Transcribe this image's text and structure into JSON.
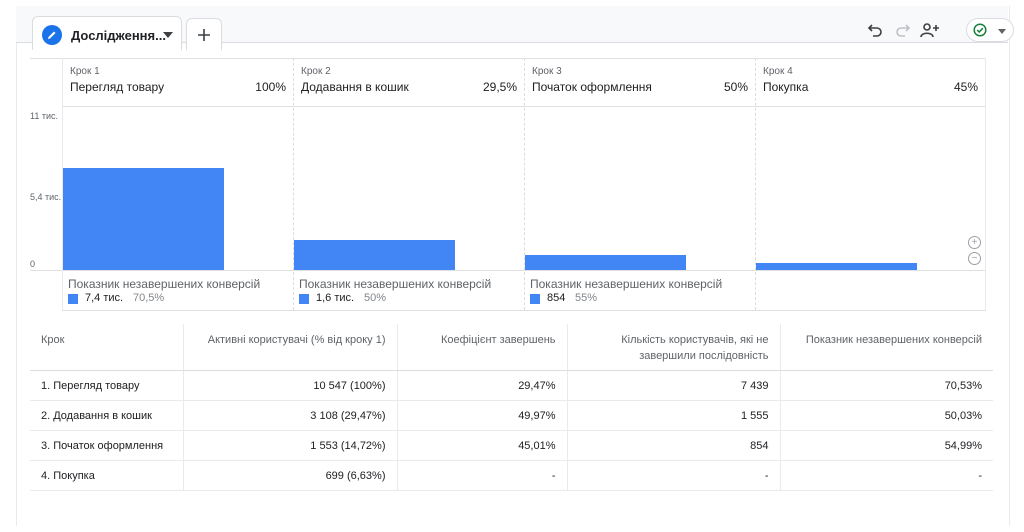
{
  "tab": {
    "title": "Дослідження..."
  },
  "steps": [
    {
      "num": "Крок 1",
      "name": "Перегляд товару",
      "pct": "100%"
    },
    {
      "num": "Крок 2",
      "name": "Додавання в кошик",
      "pct": "29,5%"
    },
    {
      "num": "Крок 3",
      "name": "Початок оформлення",
      "pct": "50%"
    },
    {
      "num": "Крок 4",
      "name": "Покупка",
      "pct": "45%"
    }
  ],
  "chart_data": {
    "type": "bar",
    "categories": [
      "Крок 1",
      "Крок 2",
      "Крок 3",
      "Крок 4"
    ],
    "values": [
      10547,
      3108,
      1553,
      699
    ],
    "yticks": [
      "11 тис.",
      "5,4 тис.",
      "0"
    ],
    "ylim": [
      0,
      10800
    ]
  },
  "abandon": {
    "label": "Показник незавершених конверсій",
    "items": [
      {
        "value": "7,4 тис.",
        "pct": "70,5%"
      },
      {
        "value": "1,6 тис.",
        "pct": "50%"
      },
      {
        "value": "854",
        "pct": "55%"
      }
    ]
  },
  "table": {
    "headers": [
      "Крок",
      "Активні користувачі (% від кроку 1)",
      "Коефіцієнт завершень",
      "Кількість користувачів, які не завершили послідовність",
      "Показник незавершених конверсій"
    ],
    "rows": [
      [
        "1. Перегляд товару",
        "10 547 (100%)",
        "29,47%",
        "7 439",
        "70,53%"
      ],
      [
        "2. Додавання в кошик",
        "3 108 (29,47%)",
        "49,97%",
        "1 555",
        "50,03%"
      ],
      [
        "3. Початок оформлення",
        "1 553 (14,72%)",
        "45,01%",
        "854",
        "54,99%"
      ],
      [
        "4. Покупка",
        "699 (6,63%)",
        "-",
        "-",
        "-"
      ]
    ]
  },
  "colors": {
    "accent": "#4285f4",
    "brand": "#1a73e8",
    "status": "#188038"
  }
}
